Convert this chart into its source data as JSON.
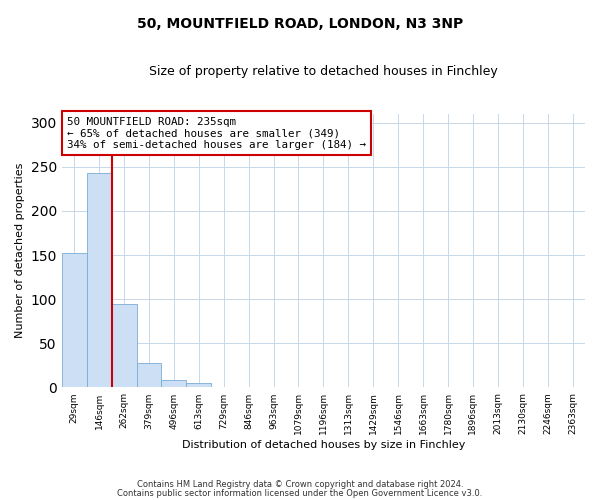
{
  "title": "50, MOUNTFIELD ROAD, LONDON, N3 3NP",
  "subtitle": "Size of property relative to detached houses in Finchley",
  "xlabel": "Distribution of detached houses by size in Finchley",
  "ylabel": "Number of detached properties",
  "bin_labels": [
    "29sqm",
    "146sqm",
    "262sqm",
    "379sqm",
    "496sqm",
    "613sqm",
    "729sqm",
    "846sqm",
    "963sqm",
    "1079sqm",
    "1196sqm",
    "1313sqm",
    "1429sqm",
    "1546sqm",
    "1663sqm",
    "1780sqm",
    "1896sqm",
    "2013sqm",
    "2130sqm",
    "2246sqm",
    "2363sqm"
  ],
  "bar_heights": [
    152,
    243,
    95,
    28,
    9,
    5,
    1,
    0,
    0,
    0,
    0,
    0,
    0,
    0,
    0,
    0,
    0,
    0,
    0,
    0,
    1
  ],
  "bar_color": "#ccdff5",
  "bar_edge_color": "#7aadd4",
  "property_line_label": "50 MOUNTFIELD ROAD: 235sqm",
  "annotation_line1": "← 65% of detached houses are smaller (349)",
  "annotation_line2": "34% of semi-detached houses are larger (184) →",
  "annotation_box_color": "#ffffff",
  "annotation_box_edge": "#cc0000",
  "vline_color": "#cc0000",
  "ylim": [
    0,
    310
  ],
  "yticks": [
    0,
    50,
    100,
    150,
    200,
    250,
    300
  ],
  "footer_line1": "Contains HM Land Registry data © Crown copyright and database right 2024.",
  "footer_line2": "Contains public sector information licensed under the Open Government Licence v3.0.",
  "bg_color": "#ffffff",
  "plot_bg_color": "#ffffff",
  "grid_color": "#c8d8ec"
}
